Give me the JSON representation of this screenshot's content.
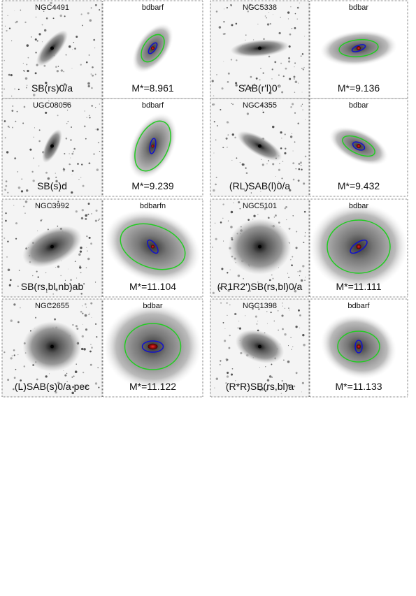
{
  "panels": [
    {
      "name": "NGC4491",
      "morphology": "SB(rs)0/a",
      "model": "bdbarf",
      "mass": "M*=8.961"
    },
    {
      "name": "NGC5338",
      "morphology": "SAB(r'l)0°",
      "model": "bdbar",
      "mass": "M*=9.136"
    },
    {
      "name": "UGC08056",
      "morphology": "SB(s)d",
      "model": "bdbarf",
      "mass": "M*=9.239"
    },
    {
      "name": "NGC4355",
      "morphology": "(RL)SAB(l)0/a",
      "model": "bdbar",
      "mass": "M*=9.432"
    },
    {
      "name": "NGC3992",
      "morphology": "SB(rs,bl,nb)ab",
      "model": "bdbarfn",
      "mass": "M*=11.104"
    },
    {
      "name": "NGC5101",
      "morphology": "(R1R2')SB(rs,bl)0/a",
      "model": "bdbar",
      "mass": "M*=11.111"
    },
    {
      "name": "NGC2655",
      "morphology": "(L)SAB(s)0/a  pec",
      "model": "bdbar",
      "mass": "M*=11.122"
    },
    {
      "name": "NGC1398",
      "morphology": "(R*R)SB(rs,bl)a",
      "model": "bdbarf",
      "mass": "M*=11.133"
    }
  ]
}
